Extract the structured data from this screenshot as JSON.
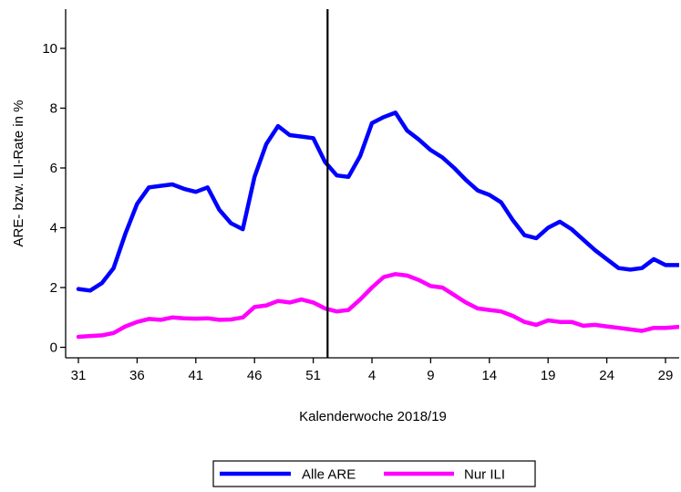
{
  "chart_data": {
    "type": "line",
    "title": "",
    "xlabel": "Kalenderwoche 2018/19",
    "ylabel": "ARE- bzw. ILI-Rate in %",
    "ylim": [
      0,
      11
    ],
    "yticks": [
      0,
      2,
      4,
      6,
      8,
      10
    ],
    "x_week_index_range": [
      0,
      52
    ],
    "xticks": [
      {
        "index": 0,
        "label": "31"
      },
      {
        "index": 5,
        "label": "36"
      },
      {
        "index": 10,
        "label": "41"
      },
      {
        "index": 15,
        "label": "46"
      },
      {
        "index": 20,
        "label": "51"
      },
      {
        "index": 25,
        "label": "4"
      },
      {
        "index": 30,
        "label": "9"
      },
      {
        "index": 35,
        "label": "14"
      },
      {
        "index": 40,
        "label": "19"
      },
      {
        "index": 45,
        "label": "24"
      },
      {
        "index": 50,
        "label": "29"
      }
    ],
    "weeks": [
      "31",
      "32",
      "33",
      "34",
      "35",
      "36",
      "37",
      "38",
      "39",
      "40",
      "41",
      "42",
      "43",
      "44",
      "45",
      "46",
      "47",
      "48",
      "49",
      "50",
      "51",
      "52",
      "1",
      "2",
      "3",
      "4",
      "5",
      "6",
      "7",
      "8",
      "9",
      "10",
      "11",
      "12",
      "13",
      "14",
      "15",
      "16",
      "17",
      "18",
      "19",
      "20",
      "21",
      "22",
      "23",
      "24",
      "25",
      "26",
      "27",
      "28",
      "29",
      "30",
      "31"
    ],
    "vertical_line_week": "1",
    "grid": false,
    "legend_position": "bottom",
    "series": [
      {
        "name": "Alle ARE",
        "color": "#0000ff",
        "values": [
          1.95,
          1.9,
          2.15,
          2.65,
          3.8,
          4.8,
          5.35,
          5.4,
          5.45,
          5.3,
          5.2,
          5.35,
          4.6,
          4.15,
          3.95,
          5.7,
          6.8,
          7.4,
          7.1,
          7.05,
          7.0,
          6.2,
          5.75,
          5.7,
          6.4,
          7.5,
          7.7,
          7.85,
          7.25,
          6.95,
          6.6,
          6.35,
          6.0,
          5.6,
          5.25,
          5.1,
          4.85,
          4.25,
          3.75,
          3.65,
          4.0,
          4.2,
          3.95,
          3.6,
          3.25,
          2.95,
          2.65,
          2.6,
          2.65,
          2.95,
          2.75,
          2.75,
          2.75
        ]
      },
      {
        "name": "Nur ILI",
        "color": "#ff00ff",
        "values": [
          0.35,
          0.38,
          0.4,
          0.48,
          0.7,
          0.85,
          0.95,
          0.92,
          1.0,
          0.97,
          0.96,
          0.97,
          0.92,
          0.93,
          1.0,
          1.35,
          1.4,
          1.55,
          1.5,
          1.6,
          1.5,
          1.3,
          1.2,
          1.25,
          1.6,
          2.0,
          2.35,
          2.45,
          2.4,
          2.25,
          2.05,
          2.0,
          1.75,
          1.5,
          1.3,
          1.25,
          1.2,
          1.05,
          0.85,
          0.75,
          0.9,
          0.85,
          0.85,
          0.72,
          0.75,
          0.7,
          0.65,
          0.6,
          0.55,
          0.65,
          0.65,
          0.68,
          0.7
        ]
      }
    ]
  }
}
